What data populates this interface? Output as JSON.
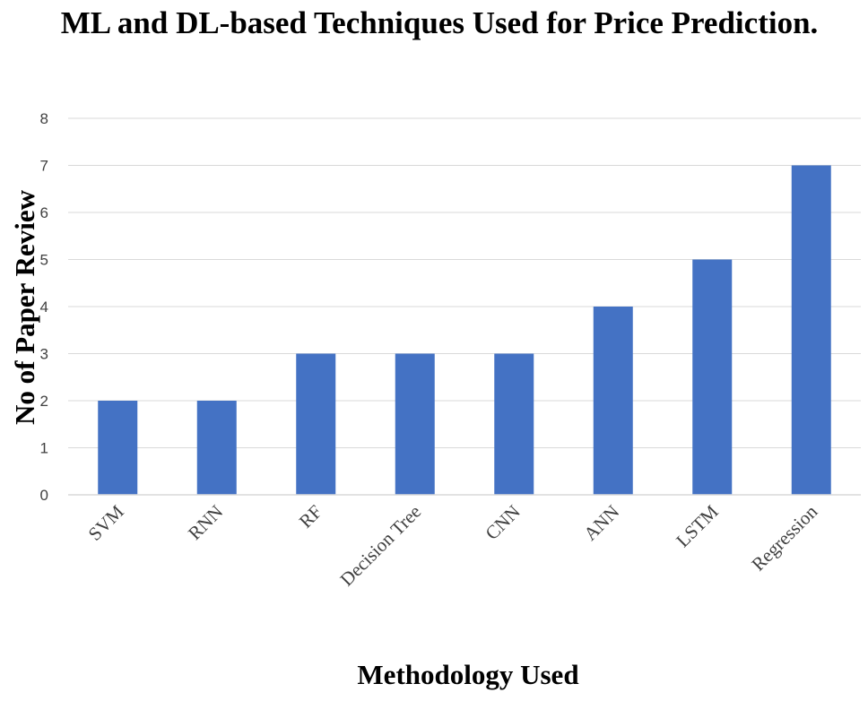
{
  "chart_data": {
    "type": "bar",
    "title": "ML and DL-based Techniques Used for Price Prediction.",
    "xlabel": "Methodology Used",
    "ylabel": "No of Paper Review",
    "categories": [
      "SVM",
      "RNN",
      "RF",
      "Decision Tree",
      "CNN",
      "ANN",
      "LSTM",
      "Regression"
    ],
    "values": [
      2,
      2,
      3,
      3,
      3,
      4,
      5,
      7
    ],
    "ylim": [
      0,
      8
    ],
    "yticks": [
      0,
      1,
      2,
      3,
      4,
      5,
      6,
      7,
      8
    ],
    "grid": true,
    "legend": "none",
    "colors": {
      "bar": "#4472c4",
      "grid": "#d9d9d9",
      "axis": "#d9d9d9"
    }
  }
}
